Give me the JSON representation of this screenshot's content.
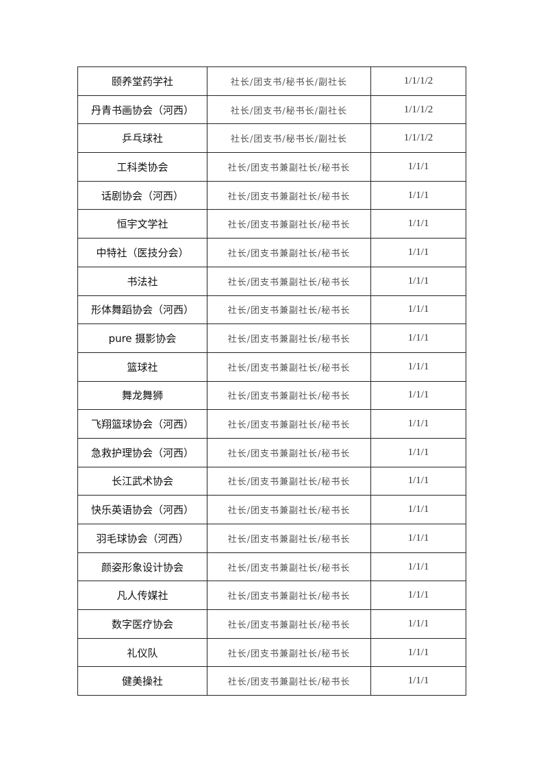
{
  "table": {
    "rows": [
      [
        "颐养堂药学社",
        "社长/团支书/秘书长/副社长",
        "1/1/1/2"
      ],
      [
        "丹青书画协会（河西）",
        "社长/团支书/秘书长/副社长",
        "1/1/1/2"
      ],
      [
        "乒乓球社",
        "社长/团支书/秘书长/副社长",
        "1/1/1/2"
      ],
      [
        "工科类协会",
        "社长/团支书兼副社长/秘书长",
        "1/1/1"
      ],
      [
        "话剧协会（河西）",
        "社长/团支书兼副社长/秘书长",
        "1/1/1"
      ],
      [
        "恒宇文学社",
        "社长/团支书兼副社长/秘书长",
        "1/1/1"
      ],
      [
        "中特社（医技分会）",
        "社长/团支书兼副社长/秘书长",
        "1/1/1"
      ],
      [
        "书法社",
        "社长/团支书兼副社长/秘书长",
        "1/1/1"
      ],
      [
        "形体舞蹈协会（河西）",
        "社长/团支书兼副社长/秘书长",
        "1/1/1"
      ],
      [
        "pure 摄影协会",
        "社长/团支书兼副社长/秘书长",
        "1/1/1"
      ],
      [
        "篮球社",
        "社长/团支书兼副社长/秘书长",
        "1/1/1"
      ],
      [
        "舞龙舞狮",
        "社长/团支书兼副社长/秘书长",
        "1/1/1"
      ],
      [
        "飞翔篮球协会（河西）",
        "社长/团支书兼副社长/秘书长",
        "1/1/1"
      ],
      [
        "急救护理协会（河西）",
        "社长/团支书兼副社长/秘书长",
        "1/1/1"
      ],
      [
        "长江武术协会",
        "社长/团支书兼副社长/秘书长",
        "1/1/1"
      ],
      [
        "快乐英语协会（河西）",
        "社长/团支书兼副社长/秘书长",
        "1/1/1"
      ],
      [
        "羽毛球协会（河西）",
        "社长/团支书兼副社长/秘书长",
        "1/1/1"
      ],
      [
        "颜姿形象设计协会",
        "社长/团支书兼副社长/秘书长",
        "1/1/1"
      ],
      [
        "凡人传媒社",
        "社长/团支书兼副社长/秘书长",
        "1/1/1"
      ],
      [
        "数字医疗协会",
        "社长/团支书兼副社长/秘书长",
        "1/1/1"
      ],
      [
        "礼仪队",
        "社长/团支书兼副社长/秘书长",
        "1/1/1"
      ],
      [
        "健美操社",
        "社长/团支书兼副社长/秘书长",
        "1/1/1"
      ]
    ]
  }
}
